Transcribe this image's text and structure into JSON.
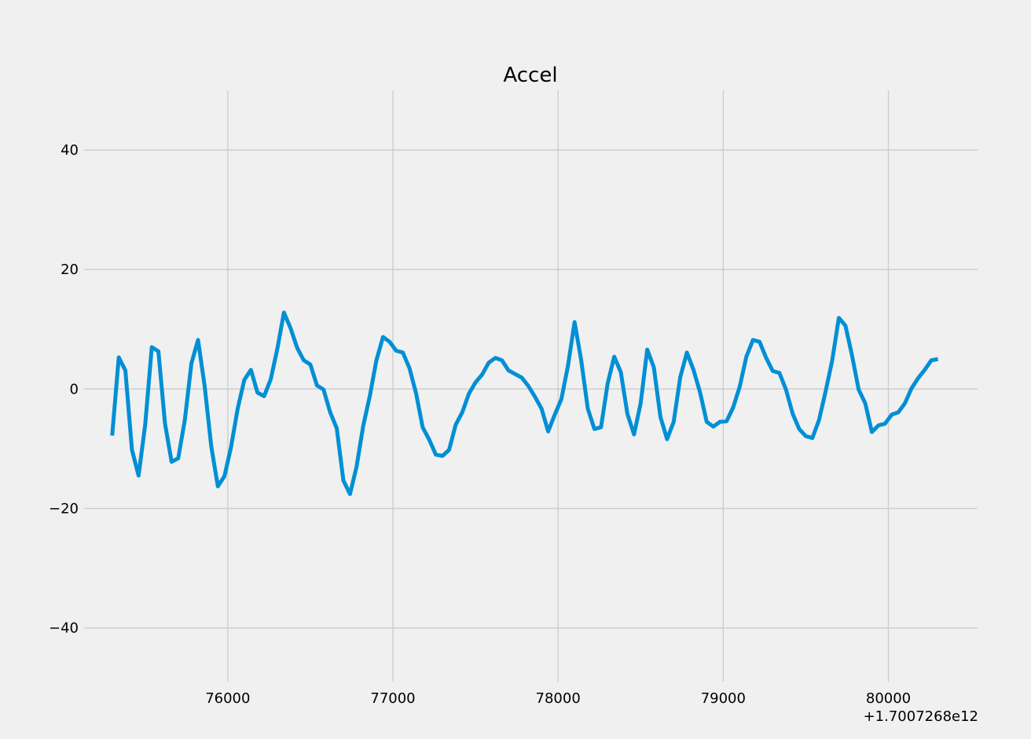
{
  "chart_data": {
    "type": "line",
    "title": "Accel",
    "xlabel": "",
    "ylabel": "",
    "offset_text": "+1.7007268e12",
    "grid": true,
    "xlim": [
      75130,
      80540
    ],
    "ylim": [
      -49,
      50
    ],
    "x_ticks": [
      76000,
      77000,
      78000,
      79000,
      80000
    ],
    "x_tick_labels": [
      "76000",
      "77000",
      "78000",
      "79000",
      "80000"
    ],
    "y_ticks": [
      -40,
      -20,
      0,
      20,
      40
    ],
    "y_tick_labels": [
      "−40",
      "−20",
      "0",
      "20",
      "40"
    ],
    "colors": {
      "line": "#008fd5",
      "background": "#f0f0f0",
      "grid": "#cbcbcb"
    },
    "series": [
      {
        "x": [
          75300,
          75340,
          75380,
          75420,
          75460,
          75500,
          75540,
          75580,
          75620,
          75660,
          75700,
          75740,
          75780,
          75820,
          75860,
          75900,
          75940,
          75980,
          76020,
          76060,
          76100,
          76140,
          76180,
          76220,
          76260,
          76300,
          76340,
          76380,
          76420,
          76460,
          76500,
          76540,
          76580,
          76620,
          76660,
          76700,
          76740,
          76780,
          76820,
          76860,
          76900,
          76940,
          76980,
          77020,
          77060,
          77100,
          77140,
          77180,
          77220,
          77260,
          77300,
          77340,
          77380,
          77420,
          77460,
          77500,
          77540,
          77580,
          77620,
          77660,
          77700,
          77740,
          77780,
          77820,
          77860,
          77900,
          77940,
          77980,
          78020,
          78060,
          78100,
          78140,
          78180,
          78220,
          78260,
          78300,
          78340,
          78380,
          78420,
          78460,
          78500,
          78540,
          78580,
          78620,
          78660,
          78700,
          78740,
          78780,
          78820,
          78860,
          78900,
          78940,
          78980,
          79020,
          79060,
          79100,
          79140,
          79180,
          79220,
          79260,
          79300,
          79340,
          79380,
          79420,
          79460,
          79500,
          79540,
          79580,
          79620,
          79660,
          79700,
          79740,
          79780,
          79820,
          79860,
          79900,
          79940,
          79980,
          80020,
          80060,
          80100,
          80140,
          80180,
          80220,
          80260,
          80300
        ],
        "values": [
          -7.8,
          5.3,
          3.1,
          -10.2,
          -14.5,
          -6.0,
          7.0,
          6.3,
          -5.8,
          -12.2,
          -11.6,
          -5.2,
          4.3,
          8.2,
          0.5,
          -9.6,
          -16.3,
          -14.6,
          -9.7,
          -3.3,
          1.5,
          3.2,
          -0.6,
          -1.2,
          1.6,
          6.7,
          12.8,
          10.2,
          6.9,
          4.8,
          4.1,
          0.6,
          -0.1,
          -3.9,
          -6.6,
          -15.3,
          -17.6,
          -13.0,
          -6.2,
          -1.2,
          4.8,
          8.7,
          7.9,
          6.4,
          6.1,
          3.5,
          -0.7,
          -6.4,
          -8.5,
          -11.0,
          -11.2,
          -10.2,
          -6.0,
          -3.9,
          -0.8,
          1.1,
          2.4,
          4.4,
          5.2,
          4.8,
          3.1,
          2.5,
          1.9,
          0.5,
          -1.3,
          -3.3,
          -7.1,
          -4.3,
          -1.7,
          3.9,
          11.2,
          4.8,
          -3.3,
          -6.7,
          -6.4,
          0.9,
          5.4,
          2.8,
          -4.2,
          -7.6,
          -2.4,
          6.6,
          3.6,
          -4.7,
          -8.4,
          -5.5,
          2.0,
          6.1,
          3.2,
          -0.6,
          -5.5,
          -6.3,
          -5.5,
          -5.4,
          -3.1,
          0.4,
          5.4,
          8.2,
          7.9,
          5.2,
          3.0,
          2.7,
          -0.1,
          -4.1,
          -6.7,
          -7.9,
          -8.2,
          -5.2,
          -0.4,
          4.8,
          11.9,
          10.6,
          5.6,
          -0.1,
          -2.4,
          -7.2,
          -6.1,
          -5.8,
          -4.3,
          -3.9,
          -2.4,
          0.1,
          1.8,
          3.2,
          4.8,
          5.0
        ]
      }
    ]
  }
}
